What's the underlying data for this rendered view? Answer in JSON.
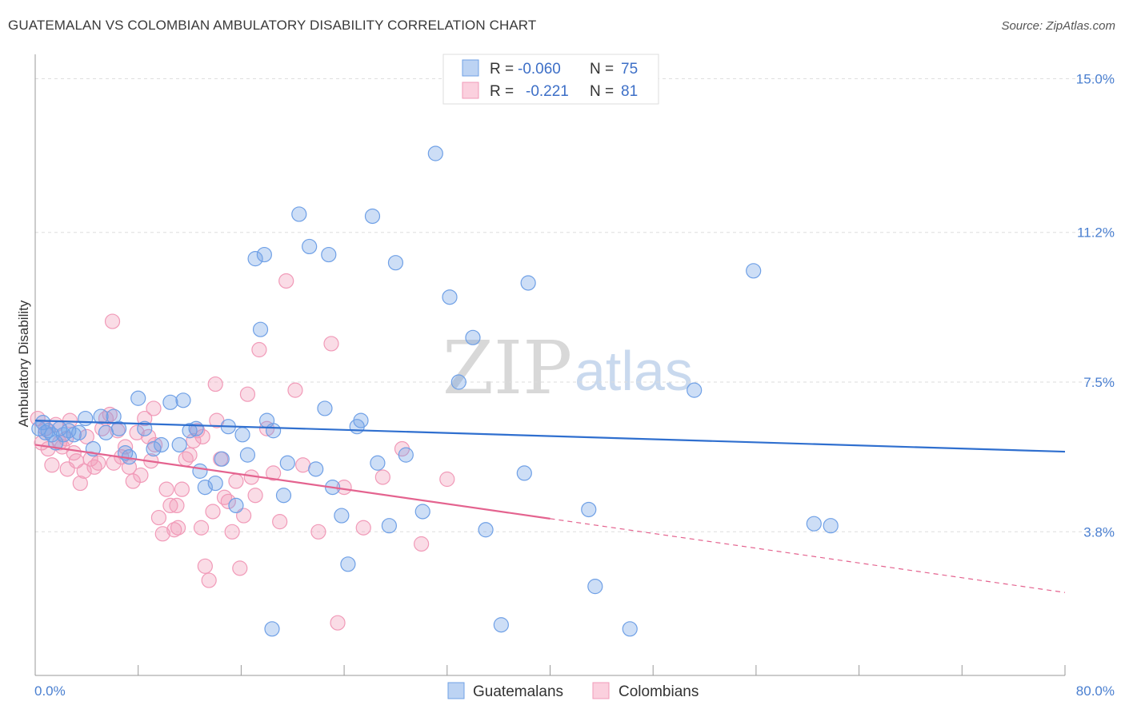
{
  "header": {
    "title": "GUATEMALAN VS COLOMBIAN AMBULATORY DISABILITY CORRELATION CHART",
    "source": "Source: ZipAtlas.com"
  },
  "legend": {
    "r_label": "R =",
    "n_label": "N =",
    "series": [
      {
        "r": "-0.060",
        "n": "75"
      },
      {
        "r": "-0.221",
        "n": "81"
      }
    ]
  },
  "watermark": {
    "zip": "ZIP",
    "atlas": "atlas"
  },
  "chart_data": {
    "type": "scatter",
    "title": "GUATEMALAN VS COLOMBIAN AMBULATORY DISABILITY CORRELATION CHART",
    "xlabel": "",
    "ylabel": "Ambulatory Disability",
    "xlim": [
      0,
      80
    ],
    "ylim": [
      0.25,
      15.6
    ],
    "x_tick_labels": [
      "0.0%",
      "80.0%"
    ],
    "y_ticks": [
      3.8,
      7.5,
      11.2,
      15.0
    ],
    "y_tick_labels": [
      "3.8%",
      "7.5%",
      "11.2%",
      "15.0%"
    ],
    "colors": {
      "guatemalans": "#6fa0e6",
      "guatemalans_line": "#2f6fcf",
      "colombians": "#f19ab8",
      "colombians_line": "#e4638f"
    },
    "series": [
      {
        "name": "Guatemalans",
        "r": -0.06,
        "n": 75,
        "trend": {
          "x0": 0,
          "y0": 6.55,
          "x1": 80,
          "y1": 5.78,
          "solid_until": 80
        },
        "points": [
          [
            0.3,
            6.35
          ],
          [
            0.6,
            6.5
          ],
          [
            0.8,
            6.25
          ],
          [
            1.0,
            6.3
          ],
          [
            1.3,
            6.2
          ],
          [
            1.6,
            6.0
          ],
          [
            1.9,
            6.35
          ],
          [
            2.2,
            6.2
          ],
          [
            2.6,
            6.3
          ],
          [
            3.0,
            6.2
          ],
          [
            3.4,
            6.25
          ],
          [
            3.9,
            6.6
          ],
          [
            4.5,
            5.85
          ],
          [
            5.1,
            6.65
          ],
          [
            5.5,
            6.25
          ],
          [
            6.1,
            6.65
          ],
          [
            6.5,
            6.35
          ],
          [
            7.0,
            5.75
          ],
          [
            7.3,
            5.65
          ],
          [
            8.0,
            7.1
          ],
          [
            8.5,
            6.35
          ],
          [
            9.2,
            5.85
          ],
          [
            9.8,
            5.95
          ],
          [
            10.5,
            7.0
          ],
          [
            11.2,
            5.95
          ],
          [
            12.0,
            6.3
          ],
          [
            11.5,
            7.05
          ],
          [
            12.5,
            6.35
          ],
          [
            12.8,
            5.3
          ],
          [
            13.2,
            4.9
          ],
          [
            14.0,
            5.0
          ],
          [
            14.5,
            5.6
          ],
          [
            15.0,
            6.4
          ],
          [
            15.6,
            4.45
          ],
          [
            16.1,
            6.2
          ],
          [
            16.5,
            5.7
          ],
          [
            17.1,
            10.55
          ],
          [
            17.5,
            8.8
          ],
          [
            17.8,
            10.65
          ],
          [
            18.0,
            6.55
          ],
          [
            18.5,
            6.3
          ],
          [
            19.3,
            4.7
          ],
          [
            19.6,
            5.5
          ],
          [
            20.5,
            11.65
          ],
          [
            21.3,
            10.85
          ],
          [
            21.8,
            5.35
          ],
          [
            22.5,
            6.85
          ],
          [
            22.8,
            10.65
          ],
          [
            23.1,
            4.9
          ],
          [
            23.8,
            4.2
          ],
          [
            24.3,
            3.0
          ],
          [
            25.0,
            6.4
          ],
          [
            25.3,
            6.55
          ],
          [
            26.2,
            11.6
          ],
          [
            26.6,
            5.5
          ],
          [
            27.5,
            3.95
          ],
          [
            28.0,
            10.45
          ],
          [
            28.8,
            5.7
          ],
          [
            30.1,
            4.3
          ],
          [
            31.1,
            13.15
          ],
          [
            32.2,
            9.6
          ],
          [
            32.9,
            7.5
          ],
          [
            34.0,
            8.6
          ],
          [
            35.0,
            3.85
          ],
          [
            36.2,
            1.5
          ],
          [
            38.0,
            5.25
          ],
          [
            38.3,
            9.95
          ],
          [
            43.0,
            4.35
          ],
          [
            43.5,
            2.45
          ],
          [
            46.2,
            1.4
          ],
          [
            51.2,
            7.3
          ],
          [
            55.8,
            10.25
          ],
          [
            60.5,
            4.0
          ],
          [
            61.8,
            3.95
          ],
          [
            18.4,
            1.4
          ]
        ]
      },
      {
        "name": "Colombians",
        "r": -0.221,
        "n": 81,
        "trend": {
          "x0": 0,
          "y0": 5.95,
          "x1": 80,
          "y1": 2.3,
          "solid_until": 40
        },
        "points": [
          [
            0.2,
            6.6
          ],
          [
            0.5,
            6.0
          ],
          [
            0.8,
            6.35
          ],
          [
            1.0,
            5.85
          ],
          [
            1.3,
            5.45
          ],
          [
            1.6,
            6.45
          ],
          [
            1.9,
            6.0
          ],
          [
            2.1,
            5.9
          ],
          [
            2.4,
            6.1
          ],
          [
            2.7,
            6.55
          ],
          [
            3.0,
            5.75
          ],
          [
            3.2,
            5.55
          ],
          [
            3.5,
            5.0
          ],
          [
            3.8,
            5.3
          ],
          [
            4.0,
            6.15
          ],
          [
            4.3,
            5.6
          ],
          [
            4.6,
            5.4
          ],
          [
            4.9,
            5.5
          ],
          [
            5.2,
            6.35
          ],
          [
            5.5,
            6.6
          ],
          [
            5.8,
            6.7
          ],
          [
            6.1,
            5.5
          ],
          [
            6.4,
            6.3
          ],
          [
            6.7,
            5.65
          ],
          [
            7.0,
            5.9
          ],
          [
            7.3,
            5.4
          ],
          [
            7.6,
            5.05
          ],
          [
            7.9,
            6.25
          ],
          [
            8.2,
            5.2
          ],
          [
            8.5,
            6.6
          ],
          [
            8.8,
            6.15
          ],
          [
            9.0,
            5.55
          ],
          [
            9.3,
            5.95
          ],
          [
            9.6,
            4.15
          ],
          [
            9.9,
            3.75
          ],
          [
            10.2,
            4.85
          ],
          [
            10.5,
            4.45
          ],
          [
            10.8,
            3.85
          ],
          [
            11.1,
            3.9
          ],
          [
            11.4,
            4.85
          ],
          [
            11.7,
            5.6
          ],
          [
            12.0,
            5.7
          ],
          [
            12.3,
            6.05
          ],
          [
            12.6,
            6.3
          ],
          [
            12.9,
            3.9
          ],
          [
            13.2,
            2.95
          ],
          [
            13.5,
            2.6
          ],
          [
            13.8,
            4.3
          ],
          [
            14.1,
            6.55
          ],
          [
            14.4,
            5.6
          ],
          [
            14.7,
            4.65
          ],
          [
            15.0,
            4.55
          ],
          [
            15.3,
            3.8
          ],
          [
            15.6,
            5.05
          ],
          [
            15.9,
            2.9
          ],
          [
            16.2,
            4.2
          ],
          [
            16.5,
            7.2
          ],
          [
            16.8,
            5.15
          ],
          [
            17.1,
            4.7
          ],
          [
            17.4,
            8.3
          ],
          [
            18.0,
            6.35
          ],
          [
            18.5,
            5.25
          ],
          [
            19.0,
            4.05
          ],
          [
            19.5,
            10.0
          ],
          [
            20.2,
            7.3
          ],
          [
            20.8,
            5.45
          ],
          [
            22.0,
            3.8
          ],
          [
            23.0,
            8.45
          ],
          [
            23.5,
            1.55
          ],
          [
            24.0,
            4.9
          ],
          [
            25.5,
            3.9
          ],
          [
            27.0,
            5.15
          ],
          [
            28.5,
            5.85
          ],
          [
            30.0,
            3.5
          ],
          [
            32.0,
            5.1
          ],
          [
            6.0,
            9.0
          ],
          [
            14.0,
            7.45
          ],
          [
            2.5,
            5.35
          ],
          [
            9.2,
            6.85
          ],
          [
            11.0,
            4.45
          ],
          [
            13.0,
            6.15
          ]
        ]
      }
    ]
  },
  "bottom_legend": [
    "Guatemalans",
    "Colombians"
  ]
}
